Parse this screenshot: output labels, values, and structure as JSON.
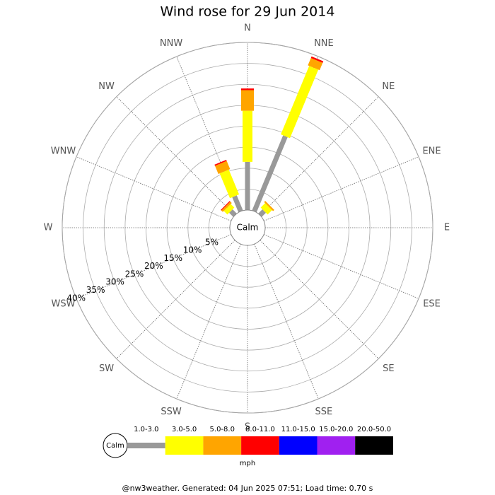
{
  "chart_data": {
    "type": "windrose",
    "title": "Wind rose for 29 Jun 2014",
    "directions": [
      "N",
      "NNE",
      "NE",
      "ENE",
      "E",
      "ESE",
      "SE",
      "SSE",
      "S",
      "SSW",
      "SW",
      "WSW",
      "W",
      "WNW",
      "NW",
      "NNW"
    ],
    "calm_label": "Calm",
    "unit": "mph",
    "rlim": [
      0,
      40
    ],
    "rticks": [
      {
        "value": 5,
        "label": "5%"
      },
      {
        "value": 10,
        "label": "10%"
      },
      {
        "value": 15,
        "label": "15%"
      },
      {
        "value": 20,
        "label": "20%"
      },
      {
        "value": 25,
        "label": "25%"
      },
      {
        "value": 30,
        "label": "30%"
      },
      {
        "value": 35,
        "label": "35%"
      },
      {
        "value": 40,
        "label": "40%"
      }
    ],
    "series": [
      {
        "name": "1.0-3.0",
        "color": "#999999",
        "values": [
          11.5,
          19.4,
          1.4,
          0,
          0,
          0,
          0,
          0,
          0,
          0,
          0,
          0,
          0,
          0,
          1.4,
          3.9
        ]
      },
      {
        "name": "3.0-5.0",
        "color": "#ffff00",
        "values": [
          12.2,
          17.7,
          1.5,
          0,
          0,
          0,
          0,
          0,
          0,
          0,
          0,
          0,
          0,
          0,
          1.2,
          6.4
        ]
      },
      {
        "name": "5.0-8.0",
        "color": "#ffa500",
        "values": [
          4.9,
          1.9,
          0.4,
          0,
          0,
          0,
          0,
          0,
          0,
          0,
          0,
          0,
          0,
          0,
          0.5,
          2.1
        ]
      },
      {
        "name": "8.0-11.0",
        "color": "#ff0000",
        "values": [
          0.4,
          0.4,
          0,
          0,
          0,
          0,
          0,
          0,
          0,
          0,
          0,
          0,
          0,
          0,
          0.2,
          0.3
        ]
      },
      {
        "name": "11.0-15.0",
        "color": "#0000ff",
        "values": [
          0,
          0,
          0,
          0,
          0,
          0,
          0,
          0,
          0,
          0,
          0,
          0,
          0,
          0,
          0,
          0
        ]
      },
      {
        "name": "15.0-20.0",
        "color": "#a020f0",
        "values": [
          0,
          0,
          0,
          0,
          0,
          0,
          0,
          0,
          0,
          0,
          0,
          0,
          0,
          0,
          0,
          0
        ]
      },
      {
        "name": "20.0-50.0",
        "color": "#000000",
        "values": [
          0,
          0,
          0,
          0,
          0,
          0,
          0,
          0,
          0,
          0,
          0,
          0,
          0,
          0,
          0,
          0
        ]
      }
    ],
    "footer": "@nw3weather. Generated: 04 Jun 2025 07:51; Load time: 0.70 s"
  }
}
